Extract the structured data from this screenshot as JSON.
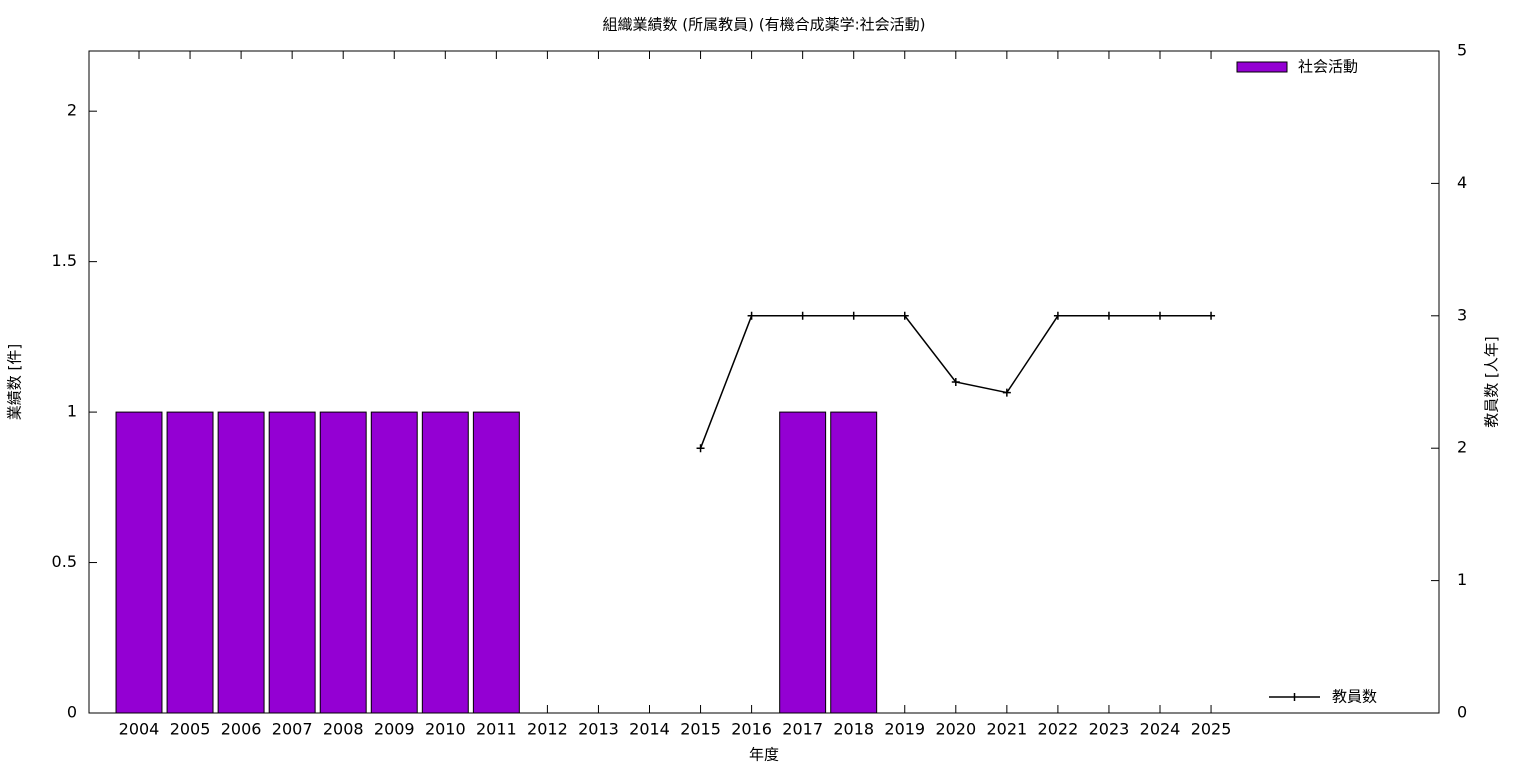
{
  "chart_data": {
    "type": "bar",
    "title": "組織業績数 (所属教員) (有機合成薬学:社会活動)",
    "x_label": "年度",
    "y_label": "業績数 [件]",
    "y2_label": "教員数 [人年]",
    "categories": [
      "2004",
      "2005",
      "2006",
      "2007",
      "2008",
      "2009",
      "2010",
      "2011",
      "2012",
      "2013",
      "2014",
      "2015",
      "2016",
      "2017",
      "2018",
      "2019",
      "2020",
      "2021",
      "2022",
      "2023",
      "2024",
      "2025"
    ],
    "series": [
      {
        "name": "社会活動",
        "type": "bar",
        "color": "#9400d3",
        "values": [
          1,
          1,
          1,
          1,
          1,
          1,
          1,
          1,
          0,
          0,
          0,
          0,
          0,
          1,
          1,
          0,
          0,
          0,
          0,
          0,
          0,
          0
        ]
      },
      {
        "name": "教員数",
        "type": "line",
        "axis": "y2",
        "color": "#000000",
        "values": [
          null,
          null,
          null,
          null,
          null,
          null,
          null,
          null,
          null,
          null,
          null,
          2,
          3,
          3,
          3,
          3,
          2.5,
          2.42,
          3,
          3,
          3,
          3
        ]
      }
    ],
    "ylim": [
      0,
      2.2
    ],
    "yticks": [
      0,
      0.5,
      1,
      1.5,
      2
    ],
    "y2lim": [
      0,
      5
    ],
    "y2ticks": [
      0,
      1,
      2,
      3,
      4,
      5
    ],
    "grid": false
  }
}
